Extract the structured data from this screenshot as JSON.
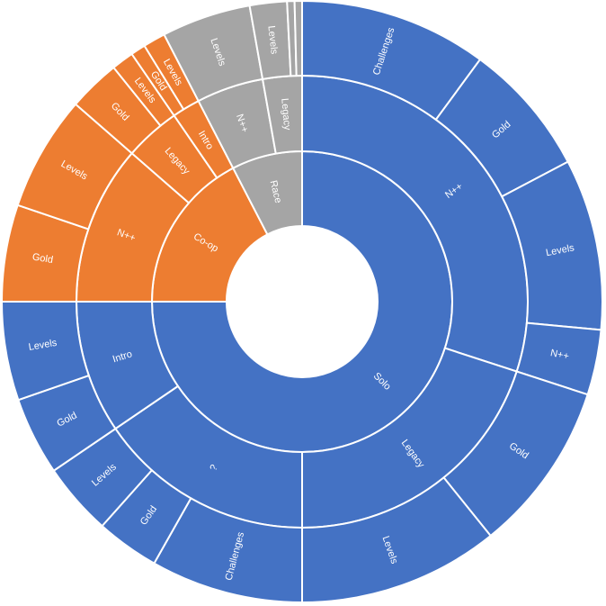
{
  "chart_data": {
    "type": "sunburst",
    "colors": {
      "Solo": "#4472C4",
      "Co-op": "#ED7D31",
      "Race": "#A5A5A5",
      "border": "#FFFFFF"
    },
    "hierarchy": [
      {
        "name": "Solo",
        "value": 75,
        "children": [
          {
            "name": "N++",
            "value": 30,
            "children": [
              {
                "name": "Challenges",
                "value": 10.1
              },
              {
                "name": "Gold",
                "value": 7.2
              },
              {
                "name": "Levels",
                "value": 9.2
              },
              {
                "name": "N++",
                "value": 3.5
              }
            ]
          },
          {
            "name": "Legacy",
            "value": 20,
            "children": [
              {
                "name": "Gold",
                "value": 9.2
              },
              {
                "name": "Levels",
                "value": 10.8
              }
            ]
          },
          {
            "name": "?",
            "value": 15.5,
            "children": [
              {
                "name": "Challenges",
                "value": 8.2
              },
              {
                "name": "Gold",
                "value": 3.4
              },
              {
                "name": "Levels",
                "value": 3.9
              }
            ]
          },
          {
            "name": "Intro",
            "value": 9.5,
            "children": [
              {
                "name": "Gold",
                "value": 4.2
              },
              {
                "name": "Levels",
                "value": 5.3
              }
            ]
          }
        ]
      },
      {
        "name": "Co-op",
        "value": 17.4,
        "children": [
          {
            "name": "N++",
            "value": 11.4,
            "children": [
              {
                "name": "Gold",
                "value": 5.2
              },
              {
                "name": "Levels",
                "value": 6.2
              }
            ]
          },
          {
            "name": "Legacy",
            "value": 4.0,
            "children": [
              {
                "name": "Gold",
                "value": 2.8
              },
              {
                "name": "Levels",
                "value": 1.2
              }
            ]
          },
          {
            "name": "Intro",
            "value": 2.0,
            "children": [
              {
                "name": "Gold",
                "value": 0.8
              },
              {
                "name": "Levels",
                "value": 1.2
              }
            ]
          }
        ]
      },
      {
        "name": "Race",
        "value": 7.6,
        "children": [
          {
            "name": "N++",
            "value": 4.8,
            "children": [
              {
                "name": "Levels",
                "value": 4.8
              }
            ]
          },
          {
            "name": "Legacy",
            "value": 2.8,
            "children": [
              {
                "name": "Levels",
                "value": 2.0
              },
              {
                "name": "",
                "value": 0.4
              },
              {
                "name": "",
                "value": 0.4
              }
            ]
          }
        ]
      }
    ]
  }
}
